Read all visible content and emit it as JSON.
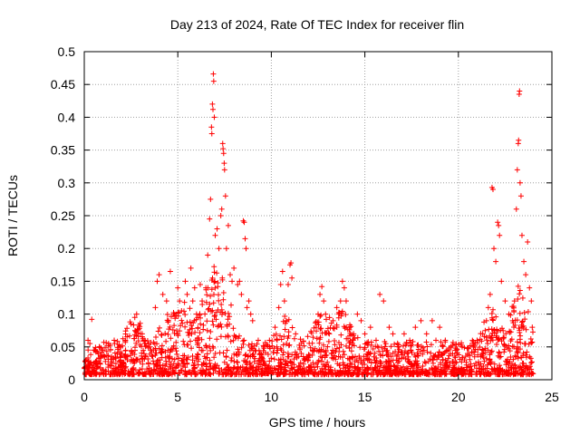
{
  "chart_data": {
    "type": "scatter",
    "title": "Day 213 of 2024, Rate Of TEC Index for receiver flin",
    "xlabel": "GPS time / hours",
    "ylabel": "ROTI / TECUs",
    "xlim": [
      0,
      25
    ],
    "ylim": [
      0,
      0.5
    ],
    "xticks": [
      0,
      5,
      10,
      15,
      20,
      25
    ],
    "yticks": [
      0,
      0.05,
      0.1,
      0.15,
      0.2,
      0.25,
      0.3,
      0.35,
      0.4,
      0.45,
      0.5
    ],
    "grid": true,
    "marker": "+",
    "color": "#ff0000",
    "series": [
      {
        "values_note_free": true,
        "points": [
          [
            0.2,
            0.06
          ],
          [
            0.3,
            0.055
          ],
          [
            0.4,
            0.092
          ],
          [
            0.5,
            0.045
          ],
          [
            0.8,
            0.05
          ],
          [
            1.0,
            0.045
          ],
          [
            1.3,
            0.055
          ],
          [
            1.6,
            0.06
          ],
          [
            1.9,
            0.05
          ],
          [
            2.2,
            0.06
          ],
          [
            2.5,
            0.085
          ],
          [
            2.7,
            0.095
          ],
          [
            2.8,
            0.1
          ],
          [
            3.0,
            0.07
          ],
          [
            3.2,
            0.06
          ],
          [
            3.5,
            0.05
          ],
          [
            3.8,
            0.11
          ],
          [
            3.9,
            0.15
          ],
          [
            4.0,
            0.16
          ],
          [
            4.2,
            0.13
          ],
          [
            4.4,
            0.12
          ],
          [
            4.5,
            0.09
          ],
          [
            4.6,
            0.165
          ],
          [
            4.8,
            0.1
          ],
          [
            5.0,
            0.14
          ],
          [
            5.1,
            0.12
          ],
          [
            5.2,
            0.105
          ],
          [
            5.4,
            0.15
          ],
          [
            5.5,
            0.13
          ],
          [
            5.7,
            0.17
          ],
          [
            5.8,
            0.12
          ],
          [
            5.9,
            0.14
          ],
          [
            6.0,
            0.1
          ],
          [
            6.2,
            0.145
          ],
          [
            6.3,
            0.12
          ],
          [
            6.5,
            0.14
          ],
          [
            6.6,
            0.19
          ],
          [
            6.7,
            0.245
          ],
          [
            6.75,
            0.275
          ],
          [
            6.8,
            0.385
          ],
          [
            6.82,
            0.375
          ],
          [
            6.85,
            0.42
          ],
          [
            6.88,
            0.412
          ],
          [
            6.9,
            0.466
          ],
          [
            6.92,
            0.455
          ],
          [
            6.95,
            0.4
          ],
          [
            7.0,
            0.22
          ],
          [
            7.1,
            0.23
          ],
          [
            7.2,
            0.2
          ],
          [
            7.3,
            0.25
          ],
          [
            7.35,
            0.26
          ],
          [
            7.4,
            0.36
          ],
          [
            7.42,
            0.352
          ],
          [
            7.45,
            0.345
          ],
          [
            7.48,
            0.33
          ],
          [
            7.5,
            0.32
          ],
          [
            7.55,
            0.28
          ],
          [
            7.6,
            0.2
          ],
          [
            7.7,
            0.235
          ],
          [
            7.8,
            0.16
          ],
          [
            7.9,
            0.15
          ],
          [
            8.0,
            0.17
          ],
          [
            8.2,
            0.145
          ],
          [
            8.3,
            0.15
          ],
          [
            8.4,
            0.13
          ],
          [
            8.5,
            0.242
          ],
          [
            8.55,
            0.24
          ],
          [
            8.6,
            0.215
          ],
          [
            8.65,
            0.2
          ],
          [
            8.7,
            0.11
          ],
          [
            8.8,
            0.12
          ],
          [
            8.9,
            0.1
          ],
          [
            9.0,
            0.09
          ],
          [
            9.3,
            0.06
          ],
          [
            9.6,
            0.05
          ],
          [
            9.9,
            0.06
          ],
          [
            10.2,
            0.08
          ],
          [
            10.4,
            0.11
          ],
          [
            10.5,
            0.145
          ],
          [
            10.6,
            0.165
          ],
          [
            10.7,
            0.12
          ],
          [
            10.8,
            0.09
          ],
          [
            10.9,
            0.145
          ],
          [
            11.0,
            0.175
          ],
          [
            11.05,
            0.178
          ],
          [
            11.1,
            0.155
          ],
          [
            11.3,
            0.07
          ],
          [
            11.6,
            0.04
          ],
          [
            11.9,
            0.035
          ],
          [
            12.2,
            0.045
          ],
          [
            12.4,
            0.08
          ],
          [
            12.5,
            0.1
          ],
          [
            12.6,
            0.13
          ],
          [
            12.7,
            0.142
          ],
          [
            12.8,
            0.12
          ],
          [
            12.9,
            0.1
          ],
          [
            13.1,
            0.07
          ],
          [
            13.3,
            0.09
          ],
          [
            13.5,
            0.11
          ],
          [
            13.6,
            0.1
          ],
          [
            13.7,
            0.12
          ],
          [
            13.8,
            0.15
          ],
          [
            13.9,
            0.14
          ],
          [
            14.0,
            0.12
          ],
          [
            14.2,
            0.08
          ],
          [
            14.4,
            0.07
          ],
          [
            14.6,
            0.1
          ],
          [
            14.8,
            0.09
          ],
          [
            15.0,
            0.07
          ],
          [
            15.3,
            0.08
          ],
          [
            15.6,
            0.06
          ],
          [
            15.8,
            0.13
          ],
          [
            16.0,
            0.12
          ],
          [
            16.3,
            0.08
          ],
          [
            16.5,
            0.07
          ],
          [
            16.8,
            0.05
          ],
          [
            17.1,
            0.07
          ],
          [
            17.4,
            0.06
          ],
          [
            17.7,
            0.08
          ],
          [
            18.0,
            0.09
          ],
          [
            18.3,
            0.07
          ],
          [
            18.6,
            0.09
          ],
          [
            18.8,
            0.06
          ],
          [
            19.0,
            0.08
          ],
          [
            19.3,
            0.06
          ],
          [
            19.6,
            0.05
          ],
          [
            19.9,
            0.045
          ],
          [
            20.2,
            0.05
          ],
          [
            20.5,
            0.04
          ],
          [
            20.8,
            0.05
          ],
          [
            21.0,
            0.06
          ],
          [
            21.3,
            0.07
          ],
          [
            21.5,
            0.09
          ],
          [
            21.6,
            0.11
          ],
          [
            21.7,
            0.13
          ],
          [
            21.8,
            0.293
          ],
          [
            21.85,
            0.29
          ],
          [
            21.9,
            0.2
          ],
          [
            22.0,
            0.18
          ],
          [
            22.1,
            0.24
          ],
          [
            22.15,
            0.235
          ],
          [
            22.2,
            0.22
          ],
          [
            22.3,
            0.15
          ],
          [
            22.5,
            0.12
          ],
          [
            22.7,
            0.1
          ],
          [
            22.9,
            0.09
          ],
          [
            23.0,
            0.12
          ],
          [
            23.1,
            0.26
          ],
          [
            23.15,
            0.32
          ],
          [
            23.2,
            0.36
          ],
          [
            23.22,
            0.365
          ],
          [
            23.25,
            0.435
          ],
          [
            23.27,
            0.44
          ],
          [
            23.3,
            0.3
          ],
          [
            23.35,
            0.28
          ],
          [
            23.4,
            0.22
          ],
          [
            23.5,
            0.18
          ],
          [
            23.6,
            0.16
          ],
          [
            23.7,
            0.21
          ],
          [
            23.8,
            0.14
          ],
          [
            23.9,
            0.12
          ],
          [
            23.95,
            0.08
          ]
        ]
      }
    ]
  }
}
